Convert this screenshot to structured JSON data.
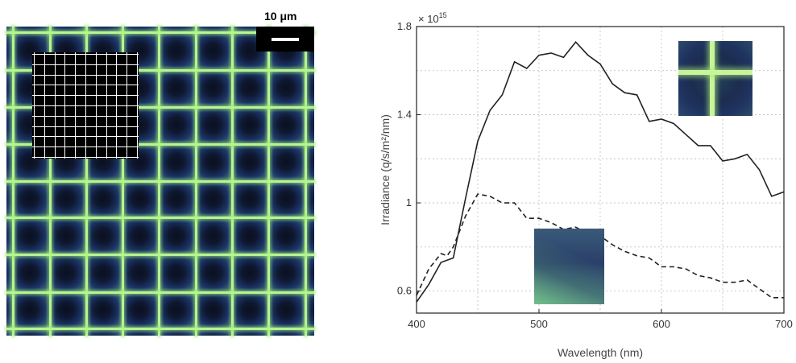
{
  "figure": {
    "scale_bar_label": "10 μm",
    "exponent_label": "× 10",
    "exponent_power": "15"
  },
  "colors": {
    "grid_line": "#b8f490",
    "cell_dark": "#0b1020",
    "cell_mid": "#1c3568",
    "curve": "#222222"
  },
  "chart_data": {
    "type": "line",
    "xlabel": "Wavelength (nm)",
    "ylabel": "Irradiance (q/s/m²/nm)",
    "xlim": [
      400,
      700
    ],
    "ylim": [
      0.5,
      1.8
    ],
    "xticks": [
      400,
      500,
      600,
      700
    ],
    "yticks": [
      0.6,
      1,
      1.4,
      1.8
    ],
    "ytick_labels": [
      "0.6",
      "1",
      "1.4",
      "1.8"
    ],
    "grid": true,
    "series": [
      {
        "style": "solid",
        "x": [
          400,
          410,
          420,
          425,
          430,
          440,
          450,
          460,
          470,
          480,
          490,
          500,
          510,
          520,
          530,
          540,
          550,
          560,
          570,
          580,
          590,
          600,
          610,
          620,
          630,
          640,
          650,
          660,
          670,
          680,
          690,
          700
        ],
        "y": [
          0.55,
          0.63,
          0.73,
          0.74,
          0.75,
          1.02,
          1.28,
          1.42,
          1.49,
          1.64,
          1.61,
          1.67,
          1.68,
          1.66,
          1.73,
          1.67,
          1.63,
          1.54,
          1.5,
          1.49,
          1.37,
          1.38,
          1.36,
          1.31,
          1.26,
          1.26,
          1.19,
          1.2,
          1.22,
          1.15,
          1.03,
          1.05
        ]
      },
      {
        "style": "dashed",
        "x": [
          400,
          410,
          420,
          425,
          430,
          440,
          450,
          460,
          470,
          480,
          490,
          500,
          510,
          520,
          530,
          540,
          550,
          560,
          570,
          580,
          590,
          600,
          610,
          620,
          630,
          640,
          650,
          660,
          670,
          680,
          690,
          700
        ],
        "y": [
          0.58,
          0.7,
          0.77,
          0.76,
          0.8,
          0.94,
          1.04,
          1.03,
          1.0,
          1.0,
          0.93,
          0.93,
          0.91,
          0.88,
          0.89,
          0.86,
          0.85,
          0.81,
          0.78,
          0.76,
          0.75,
          0.71,
          0.71,
          0.7,
          0.67,
          0.66,
          0.64,
          0.64,
          0.65,
          0.61,
          0.57,
          0.57
        ]
      }
    ]
  }
}
